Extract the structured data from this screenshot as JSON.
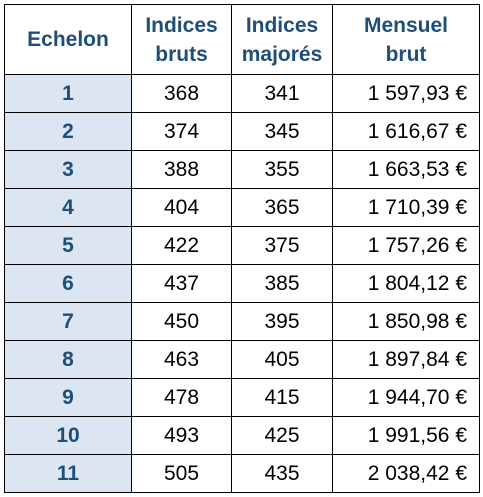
{
  "table": {
    "headers": {
      "echelon": "Echelon",
      "indices_bruts_line1": "Indices",
      "indices_bruts_line2": "bruts",
      "indices_majores_line1": "Indices",
      "indices_majores_line2": "majorés",
      "mensuel_brut_line1": "Mensuel",
      "mensuel_brut_line2": "brut"
    },
    "rows": [
      {
        "echelon": "1",
        "indice_brut": "368",
        "indice_majore": "341",
        "mensuel_brut": "1 597,93 €"
      },
      {
        "echelon": "2",
        "indice_brut": "374",
        "indice_majore": "345",
        "mensuel_brut": "1 616,67 €"
      },
      {
        "echelon": "3",
        "indice_brut": "388",
        "indice_majore": "355",
        "mensuel_brut": "1 663,53 €"
      },
      {
        "echelon": "4",
        "indice_brut": "404",
        "indice_majore": "365",
        "mensuel_brut": "1 710,39 €"
      },
      {
        "echelon": "5",
        "indice_brut": "422",
        "indice_majore": "375",
        "mensuel_brut": "1 757,26 €"
      },
      {
        "echelon": "6",
        "indice_brut": "437",
        "indice_majore": "385",
        "mensuel_brut": "1 804,12 €"
      },
      {
        "echelon": "7",
        "indice_brut": "450",
        "indice_majore": "395",
        "mensuel_brut": "1 850,98 €"
      },
      {
        "echelon": "8",
        "indice_brut": "463",
        "indice_majore": "405",
        "mensuel_brut": "1 897,84 €"
      },
      {
        "echelon": "9",
        "indice_brut": "478",
        "indice_majore": "415",
        "mensuel_brut": "1 944,70 €"
      },
      {
        "echelon": "10",
        "indice_brut": "493",
        "indice_majore": "425",
        "mensuel_brut": "1 991,56 €"
      },
      {
        "echelon": "11",
        "indice_brut": "505",
        "indice_majore": "435",
        "mensuel_brut": "2 038,42 €"
      }
    ],
    "colors": {
      "header_text": "#1f4e79",
      "echelon_fill": "#dce6f2",
      "border": "#000000"
    }
  }
}
